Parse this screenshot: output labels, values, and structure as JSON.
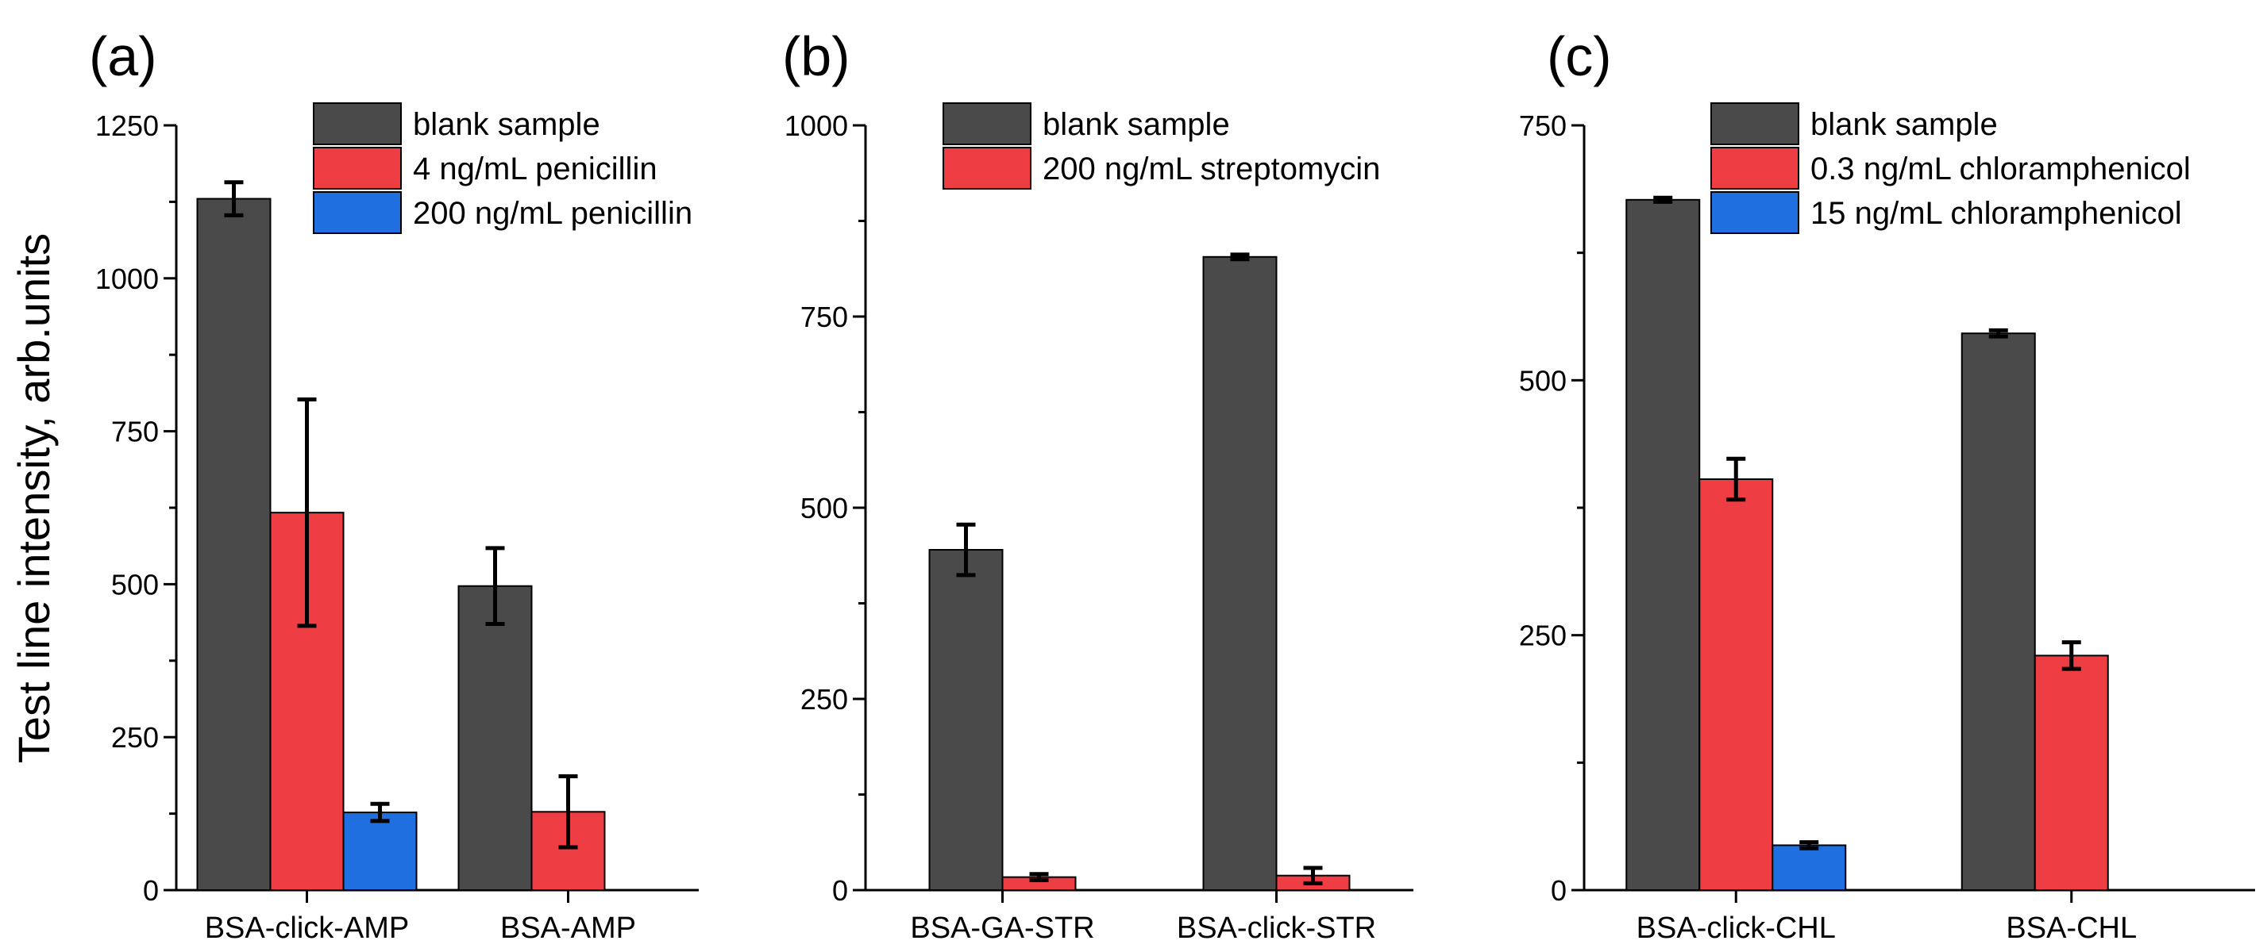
{
  "ylabel": "Test line intensity, arb.units",
  "colors": {
    "blank": "#4a4a4a",
    "red": "#ef3e43",
    "blue": "#1f6fe0"
  },
  "chart_data": [
    {
      "type": "bar",
      "panel_label": "(a)",
      "categories": [
        "BSA-click-AMP",
        "BSA-AMP"
      ],
      "ylim": [
        0,
        1250
      ],
      "yticks": [
        "0",
        "250",
        "500",
        "750",
        "1000",
        "1250"
      ],
      "series": [
        {
          "name": "blank sample",
          "color": "#4a4a4a",
          "values": [
            1130,
            497
          ],
          "errors": [
            27,
            62
          ]
        },
        {
          "name": "4 ng/mL penicillin",
          "color": "#ef3e43",
          "values": [
            617,
            128
          ],
          "errors": [
            185,
            58
          ]
        },
        {
          "name": "200  ng/mL penicillin",
          "color": "#1f6fe0",
          "values": [
            127,
            null
          ],
          "errors": [
            14,
            null
          ]
        }
      ]
    },
    {
      "type": "bar",
      "panel_label": "(b)",
      "categories": [
        "BSA-GA-STR",
        "BSA-click-STR"
      ],
      "ylim": [
        0,
        1000
      ],
      "yticks": [
        "0",
        "250",
        "500",
        "750",
        "1000"
      ],
      "series": [
        {
          "name": "blank sample",
          "color": "#4a4a4a",
          "values": [
            445,
            828
          ],
          "errors": [
            33,
            3
          ]
        },
        {
          "name": "200 ng/mL streptomycin",
          "color": "#ef3e43",
          "values": [
            17,
            19
          ],
          "errors": [
            4,
            10
          ]
        }
      ]
    },
    {
      "type": "bar",
      "panel_label": "(c)",
      "categories": [
        "BSA-click-CHL",
        "BSA-CHL"
      ],
      "ylim": [
        0,
        750
      ],
      "yticks": [
        "0",
        "250",
        "500",
        "750"
      ],
      "series": [
        {
          "name": "blank sample",
          "color": "#4a4a4a",
          "values": [
            677,
            546
          ],
          "errors": [
            2,
            3
          ]
        },
        {
          "name": "0.3 ng/mL chloramphenicol",
          "color": "#ef3e43",
          "values": [
            403,
            230
          ],
          "errors": [
            20,
            13
          ]
        },
        {
          "name": "15 ng/mL chloramphenicol",
          "color": "#1f6fe0",
          "values": [
            44,
            null
          ],
          "errors": [
            3,
            null
          ]
        }
      ]
    }
  ]
}
